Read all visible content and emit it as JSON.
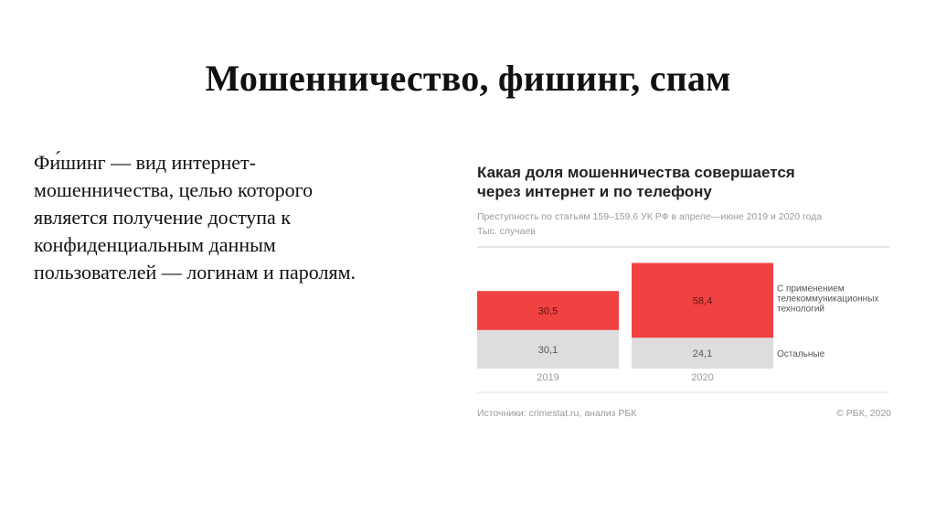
{
  "slide": {
    "title": "Мошенничество, фишинг, спам",
    "body_text": "Фи́шинг — вид интернет-\nмошенничества, целью которого\nявляется получение доступа к\nконфиденциальным данным\nпользователей — логинам и паролям."
  },
  "chart_panel": {
    "source": "Источники: crimestat.ru, анализ РБК",
    "copyright": "© РБК, 2020"
  },
  "chart_data": {
    "type": "bar",
    "stacked": true,
    "title": "Какая доля мошенничества совершается\nчерез интернет и по телефону",
    "subtitle": "Преступность по статьям 159–159.6 УК РФ в апреле—июне 2019 и 2020 года\nТыс. случаев",
    "categories": [
      "2019",
      "2020"
    ],
    "series": [
      {
        "name": "Остальные",
        "color": "#dddddd",
        "values": [
          30.1,
          24.1
        ],
        "labels": [
          "30,1",
          "24,1"
        ]
      },
      {
        "name": "С применением\nтелекоммуникационных\nтехнологий",
        "color": "#f24141",
        "values": [
          30.5,
          58.4
        ],
        "labels": [
          "30,5",
          "58,4"
        ]
      }
    ],
    "legend_position": "right",
    "grid": false
  }
}
